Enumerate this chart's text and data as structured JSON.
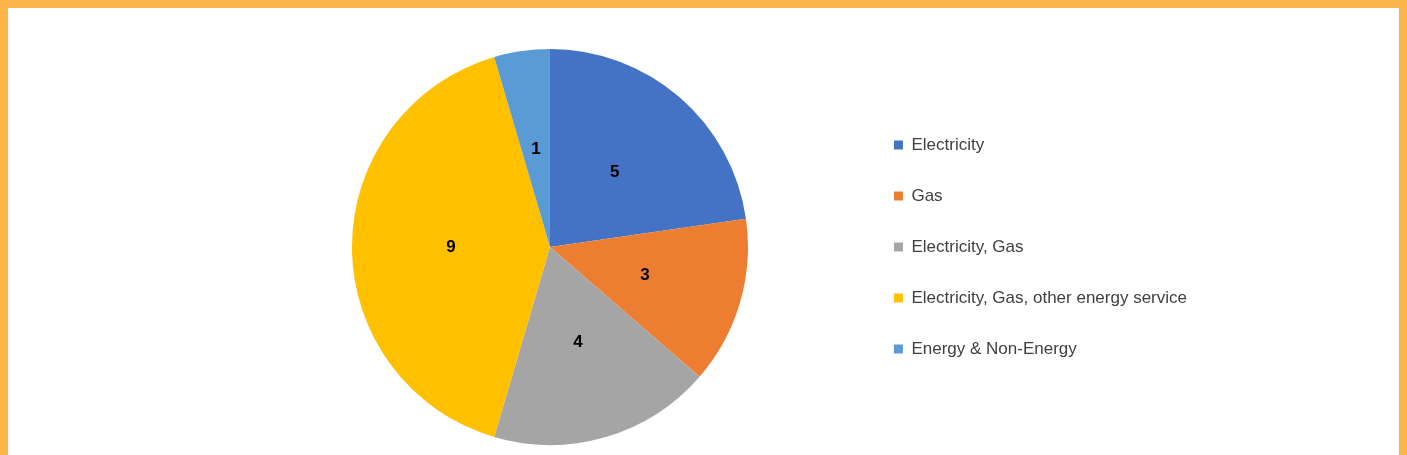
{
  "chart_data": {
    "type": "pie",
    "categories": [
      "Electricity",
      "Gas",
      "Electricity, Gas",
      "Electricity, Gas, other energy service",
      "Energy & Non-Energy"
    ],
    "values": [
      5,
      3,
      4,
      9,
      1
    ],
    "colors": [
      "#4472c4",
      "#ed7d31",
      "#a5a5a5",
      "#ffc000",
      "#5b9bd5"
    ],
    "data_labels": true,
    "legend": "right"
  }
}
